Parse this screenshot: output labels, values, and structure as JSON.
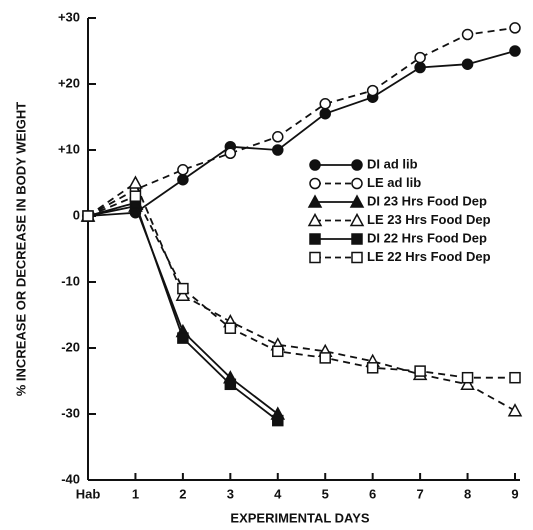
{
  "chart_data": {
    "type": "line",
    "ylabel": "% INCREASE OR DECREASE IN BODY WEIGHT",
    "xlabel": "EXPERIMENTAL DAYS",
    "categories": [
      "Hab",
      "1",
      "2",
      "3",
      "4",
      "5",
      "6",
      "7",
      "8",
      "9"
    ],
    "ylim": [
      -40,
      30
    ],
    "yticks": [
      {
        "value": 30,
        "label": "+30"
      },
      {
        "value": 20,
        "label": "+20"
      },
      {
        "value": 10,
        "label": "+10"
      },
      0,
      -10,
      -20,
      -30,
      -40
    ],
    "series": [
      {
        "name": "DI ad lib",
        "color": "#111111",
        "marker": "circle",
        "filled": true,
        "dashed": false,
        "values": [
          0,
          0.5,
          5.5,
          10.5,
          10,
          15.5,
          18,
          22.5,
          23,
          25
        ]
      },
      {
        "name": "LE ad lib",
        "color": "#111111",
        "marker": "circle",
        "filled": false,
        "dashed": true,
        "values": [
          0,
          4,
          7,
          9.5,
          12,
          17,
          19,
          24,
          27.5,
          28.5
        ]
      },
      {
        "name": "DI 23 Hrs Food Dep",
        "color": "#111111",
        "marker": "triangle",
        "filled": true,
        "dashed": false,
        "values": [
          0,
          1.5,
          -17.5,
          -24.5,
          -30,
          null,
          null,
          null,
          null,
          null
        ]
      },
      {
        "name": "LE 23 Hrs Food Dep",
        "color": "#111111",
        "marker": "triangle",
        "filled": false,
        "dashed": true,
        "values": [
          0,
          5,
          -12,
          -16,
          -19.5,
          -20.5,
          -22,
          -24,
          -25.5,
          -29.5
        ]
      },
      {
        "name": "DI 22 Hrs Food Dep",
        "color": "#111111",
        "marker": "square",
        "filled": true,
        "dashed": false,
        "values": [
          0,
          2,
          -18.5,
          -25.5,
          -31,
          null,
          null,
          null,
          null,
          null
        ]
      },
      {
        "name": "LE 22 Hrs Food Dep",
        "color": "#111111",
        "marker": "square",
        "filled": false,
        "dashed": true,
        "values": [
          0,
          3,
          -11,
          -17,
          -20.5,
          -21.5,
          -23,
          -23.5,
          -24.5,
          -24.5
        ]
      }
    ]
  }
}
